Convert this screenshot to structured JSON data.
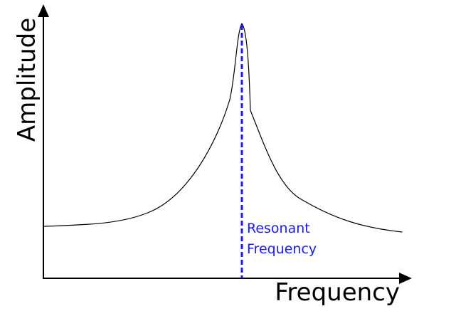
{
  "diagram": {
    "axis_labels": {
      "x": "Frequency",
      "y": "Amplitude"
    },
    "marker": {
      "label_line1": "Resonant",
      "label_line2": "Frequency",
      "color": "#1a1aff"
    },
    "curve": {
      "shape": "resonance peak",
      "color": "#000000"
    },
    "axes_color": "#000000"
  }
}
